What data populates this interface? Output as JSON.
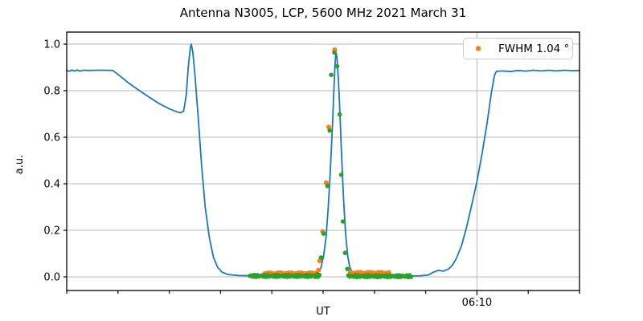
{
  "title": "Antenna N3005, LCP, 5600 MHz 2021 March 31",
  "axes": {
    "ylabel": "a.u.",
    "xlabel": "UT"
  },
  "legend": {
    "position": "upper right",
    "items": [
      {
        "label": "FWHM 1.04 °",
        "marker": "dot",
        "color": "#ff7f0e"
      }
    ]
  },
  "colors": {
    "signal_line": "#1f77b4",
    "fit_dots": "#2ca02c",
    "fwhm_dots": "#ff7f0e",
    "grid": "#b8b8b8",
    "spine": "#000000",
    "legend_border": "#cccccc"
  },
  "chart_data": {
    "type": "line",
    "title": "Antenna N3005, LCP, 5600 MHz 2021 March 31",
    "xlabel": "UT",
    "ylabel": "a.u.",
    "x_units": "minutes after 06:00 UT",
    "xlim": [
      2.0,
      12.0
    ],
    "ylim": [
      -0.0586,
      1.0517
    ],
    "grid": "major-only",
    "legend_position": "upper right",
    "yticks": [
      {
        "value": 0.0,
        "label": "0.0"
      },
      {
        "value": 0.2,
        "label": "0.2"
      },
      {
        "value": 0.4,
        "label": "0.4"
      },
      {
        "value": 0.6,
        "label": "0.6"
      },
      {
        "value": 0.8,
        "label": "0.8"
      },
      {
        "value": 1.0,
        "label": "1.0"
      }
    ],
    "xticks": [
      {
        "value": 2,
        "label": "",
        "major": false
      },
      {
        "value": 3,
        "label": "",
        "major": false
      },
      {
        "value": 4,
        "label": "",
        "major": false
      },
      {
        "value": 5,
        "label": "",
        "major": false
      },
      {
        "value": 6,
        "label": "",
        "major": false
      },
      {
        "value": 7,
        "label": "",
        "major": false
      },
      {
        "value": 8,
        "label": "",
        "major": false
      },
      {
        "value": 9,
        "label": "",
        "major": false
      },
      {
        "value": 10,
        "label": "06:10",
        "major": true
      },
      {
        "value": 11,
        "label": "",
        "major": false
      },
      {
        "value": 12,
        "label": "",
        "major": false
      }
    ],
    "series": [
      {
        "name": "antenna-signal",
        "kind": "line",
        "color": "#1f77b4",
        "width": 1.8,
        "points": [
          [
            2.0,
            0.888
          ],
          [
            2.05,
            0.883
          ],
          [
            2.1,
            0.889
          ],
          [
            2.15,
            0.884
          ],
          [
            2.2,
            0.889
          ],
          [
            2.26,
            0.884
          ],
          [
            2.32,
            0.888
          ],
          [
            2.45,
            0.887
          ],
          [
            2.6,
            0.888
          ],
          [
            2.75,
            0.888
          ],
          [
            2.9,
            0.887
          ],
          [
            3.05,
            0.861
          ],
          [
            3.2,
            0.834
          ],
          [
            3.4,
            0.803
          ],
          [
            3.6,
            0.773
          ],
          [
            3.8,
            0.745
          ],
          [
            4.0,
            0.722
          ],
          [
            4.15,
            0.709
          ],
          [
            4.22,
            0.705
          ],
          [
            4.28,
            0.712
          ],
          [
            4.33,
            0.78
          ],
          [
            4.37,
            0.9
          ],
          [
            4.41,
            0.985
          ],
          [
            4.43,
            1.0
          ],
          [
            4.46,
            0.965
          ],
          [
            4.5,
            0.87
          ],
          [
            4.56,
            0.7
          ],
          [
            4.63,
            0.48
          ],
          [
            4.7,
            0.3
          ],
          [
            4.78,
            0.17
          ],
          [
            4.86,
            0.085
          ],
          [
            4.94,
            0.042
          ],
          [
            5.03,
            0.02
          ],
          [
            5.15,
            0.01
          ],
          [
            5.35,
            0.006
          ],
          [
            5.6,
            0.005
          ],
          [
            5.9,
            0.005
          ],
          [
            6.2,
            0.006
          ],
          [
            6.5,
            0.007
          ],
          [
            6.8,
            0.01
          ],
          [
            6.9,
            0.016
          ],
          [
            6.96,
            0.04
          ],
          [
            7.01,
            0.09
          ],
          [
            7.06,
            0.175
          ],
          [
            7.1,
            0.3
          ],
          [
            7.14,
            0.45
          ],
          [
            7.18,
            0.64
          ],
          [
            7.21,
            0.8
          ],
          [
            7.23,
            0.905
          ],
          [
            7.25,
            0.965
          ],
          [
            7.27,
            0.945
          ],
          [
            7.3,
            0.845
          ],
          [
            7.33,
            0.69
          ],
          [
            7.36,
            0.52
          ],
          [
            7.4,
            0.33
          ],
          [
            7.44,
            0.18
          ],
          [
            7.48,
            0.09
          ],
          [
            7.52,
            0.042
          ],
          [
            7.57,
            0.018
          ],
          [
            7.63,
            0.008
          ],
          [
            7.75,
            0.004
          ],
          [
            8.0,
            0.004
          ],
          [
            8.3,
            0.004
          ],
          [
            8.6,
            0.004
          ],
          [
            8.9,
            0.005
          ],
          [
            9.05,
            0.008
          ],
          [
            9.15,
            0.02
          ],
          [
            9.25,
            0.028
          ],
          [
            9.35,
            0.025
          ],
          [
            9.45,
            0.034
          ],
          [
            9.52,
            0.05
          ],
          [
            9.6,
            0.08
          ],
          [
            9.7,
            0.135
          ],
          [
            9.8,
            0.215
          ],
          [
            9.9,
            0.31
          ],
          [
            10.0,
            0.41
          ],
          [
            10.1,
            0.53
          ],
          [
            10.2,
            0.665
          ],
          [
            10.28,
            0.79
          ],
          [
            10.34,
            0.865
          ],
          [
            10.38,
            0.883
          ],
          [
            10.5,
            0.885
          ],
          [
            10.65,
            0.882
          ],
          [
            10.8,
            0.887
          ],
          [
            10.95,
            0.884
          ],
          [
            11.1,
            0.888
          ],
          [
            11.25,
            0.885
          ],
          [
            11.4,
            0.888
          ],
          [
            11.55,
            0.885
          ],
          [
            11.7,
            0.888
          ],
          [
            11.85,
            0.886
          ],
          [
            12.0,
            0.887
          ]
        ]
      },
      {
        "name": "fwhm-fit-points",
        "kind": "scatter",
        "color": "#ff7f0e",
        "radius": 3.0,
        "points": [
          [
            6.909,
            0.029
          ],
          [
            6.933,
            0.069
          ],
          [
            6.99,
            0.195
          ],
          [
            7.059,
            0.405
          ],
          [
            7.11,
            0.644
          ],
          [
            7.225,
            0.976
          ],
          [
            7.554,
            0.017
          ]
        ],
        "bands": [
          {
            "t0": 5.856,
            "t1": 6.89,
            "n": 38,
            "v": 0.013,
            "amp": 0.005
          },
          {
            "t0": 7.53,
            "t1": 8.282,
            "n": 27,
            "v": 0.015,
            "amp": 0.005
          }
        ]
      },
      {
        "name": "scan-samples",
        "kind": "scatter",
        "color": "#2ca02c",
        "radius": 2.8,
        "points": [
          [
            6.847,
            0.0
          ],
          [
            6.884,
            0.011
          ],
          [
            6.96,
            0.083
          ],
          [
            7.008,
            0.186
          ],
          [
            7.084,
            0.391
          ],
          [
            7.129,
            0.629
          ],
          [
            7.159,
            0.868
          ],
          [
            7.219,
            0.964
          ],
          [
            7.272,
            0.905
          ],
          [
            7.323,
            0.698
          ],
          [
            7.355,
            0.439
          ],
          [
            7.385,
            0.238
          ],
          [
            7.43,
            0.103
          ],
          [
            7.473,
            0.034
          ]
        ],
        "bands": [
          {
            "t0": 5.574,
            "t1": 6.928,
            "n": 48,
            "v": 0.004,
            "amp": 0.004
          },
          {
            "t0": 7.492,
            "t1": 8.715,
            "n": 44,
            "v": 0.003,
            "amp": 0.004
          }
        ]
      }
    ]
  }
}
